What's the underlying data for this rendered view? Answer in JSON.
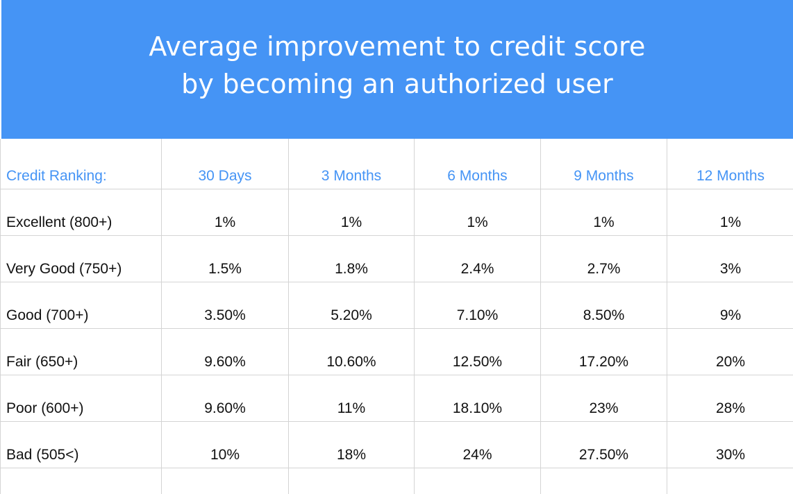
{
  "chart_data": {
    "type": "table",
    "title": "Average improvement to credit score\nby becoming an authorized user",
    "columns": [
      "Credit Ranking:",
      "30 Days",
      "3 Months",
      "6 Months",
      "9 Months",
      "12 Months"
    ],
    "rows": [
      [
        "Excellent (800+)",
        "1%",
        "1%",
        "1%",
        "1%",
        "1%"
      ],
      [
        "Very Good (750+)",
        "1.5%",
        "1.8%",
        "2.4%",
        "2.7%",
        "3%"
      ],
      [
        "Good (700+)",
        "3.50%",
        "5.20%",
        "7.10%",
        "8.50%",
        "9%"
      ],
      [
        "Fair (650+)",
        "9.60%",
        "10.60%",
        "12.50%",
        "17.20%",
        "20%"
      ],
      [
        "Poor (600+)",
        "9.60%",
        "11%",
        "18.10%",
        "23%",
        "28%"
      ],
      [
        "Bad (505<)",
        "10%",
        "18%",
        "24%",
        "27.50%",
        "30%"
      ]
    ]
  },
  "colors": {
    "banner": "#4594f5",
    "header_text": "#4594f5",
    "body_text": "#111111",
    "gridline": "#d4d4d4"
  }
}
